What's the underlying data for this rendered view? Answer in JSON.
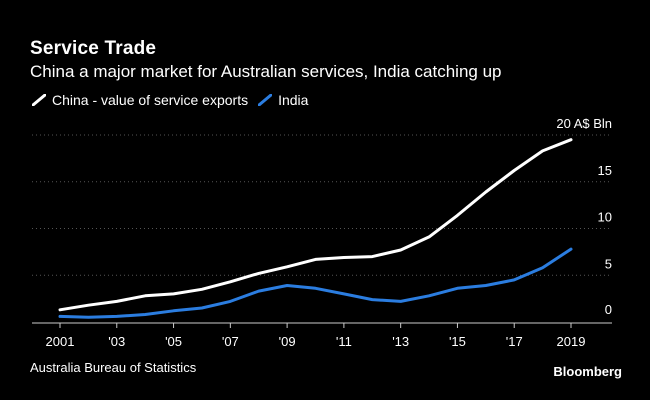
{
  "header": {
    "title": "Service Trade",
    "subtitle": "China a major market for Australian services, India catching up"
  },
  "footer": {
    "source": "Australia Bureau of Statistics",
    "brand": "Bloomberg"
  },
  "colors": {
    "background": "#000000",
    "china": "#ffffff",
    "india": "#2b7de0",
    "grid": "#555555",
    "text": "#ffffff"
  },
  "chart_data": {
    "type": "line",
    "title": "Service Trade",
    "subtitle": "China a major market for Australian services, India catching up",
    "ylabel": "A$ Bln",
    "ylim": [
      0,
      20
    ],
    "yticks": [
      0,
      5,
      10,
      15,
      20
    ],
    "ytick_labels": [
      "0",
      "5",
      "10",
      "15",
      "20 A$ Bln"
    ],
    "xlim": [
      2001,
      2019
    ],
    "xticks": [
      2001,
      2003,
      2005,
      2007,
      2009,
      2011,
      2013,
      2015,
      2017,
      2019
    ],
    "xtick_labels": [
      "2001",
      "'03",
      "'05",
      "'07",
      "'09",
      "'11",
      "'13",
      "'15",
      "'17",
      "2019"
    ],
    "legend": "top-left",
    "grid": "horizontal dotted",
    "x": [
      2001,
      2002,
      2003,
      2004,
      2005,
      2006,
      2007,
      2008,
      2009,
      2010,
      2011,
      2012,
      2013,
      2014,
      2015,
      2016,
      2017,
      2018,
      2019
    ],
    "series": [
      {
        "name": "China - value of service exports",
        "color": "#ffffff",
        "values": [
          1.3,
          1.8,
          2.2,
          2.8,
          3.0,
          3.5,
          4.3,
          5.2,
          5.9,
          6.7,
          6.9,
          7.0,
          7.7,
          9.1,
          11.4,
          13.9,
          16.2,
          18.3,
          19.5
        ]
      },
      {
        "name": "India",
        "color": "#2b7de0",
        "values": [
          0.6,
          0.5,
          0.6,
          0.8,
          1.2,
          1.5,
          2.2,
          3.3,
          3.9,
          3.6,
          3.0,
          2.4,
          2.2,
          2.8,
          3.6,
          3.9,
          4.5,
          5.8,
          7.8
        ]
      }
    ]
  }
}
